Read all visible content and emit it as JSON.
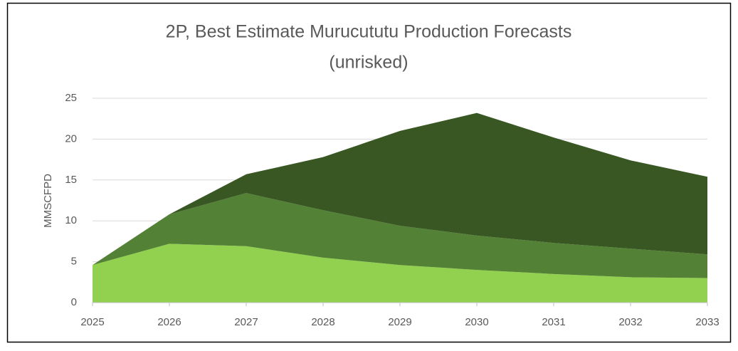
{
  "chart_data": {
    "type": "stacked_area",
    "title": [
      "2P, Best Estimate Murucututu Production Forecasts",
      "(unrisked)"
    ],
    "y_label": "MMSCFPD",
    "x": [
      2025,
      2026,
      2027,
      2028,
      2029,
      2030,
      2031,
      2032,
      2033
    ],
    "xlim": [
      2025,
      2033
    ],
    "xticks": [
      2025,
      2026,
      2027,
      2028,
      2029,
      2030,
      2031,
      2032,
      2033
    ],
    "ylim": [
      0,
      25
    ],
    "yticks": [
      0,
      5,
      10,
      15,
      20,
      25
    ],
    "grid": true,
    "series": [
      {
        "color": "#92d050",
        "values": [
          4.6,
          7.2,
          6.9,
          5.5,
          4.6,
          4.0,
          3.5,
          3.1,
          3.0
        ]
      },
      {
        "color": "#538135",
        "values": [
          0,
          3.6,
          6.5,
          5.8,
          4.8,
          4.2,
          3.8,
          3.5,
          2.9
        ]
      },
      {
        "color": "#385723",
        "values": [
          0,
          0,
          2.3,
          6.5,
          11.6,
          15.0,
          12.9,
          10.8,
          9.5
        ]
      }
    ]
  }
}
